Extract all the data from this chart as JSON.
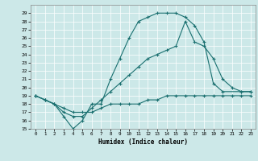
{
  "xlabel": "Humidex (Indice chaleur)",
  "xlim": [
    -0.5,
    23.5
  ],
  "ylim": [
    15,
    30
  ],
  "yticks": [
    15,
    16,
    17,
    18,
    19,
    20,
    21,
    22,
    23,
    24,
    25,
    26,
    27,
    28,
    29
  ],
  "xticks": [
    0,
    1,
    2,
    3,
    4,
    5,
    6,
    7,
    8,
    9,
    10,
    11,
    12,
    13,
    14,
    15,
    16,
    17,
    18,
    19,
    20,
    21,
    22,
    23
  ],
  "bg_color": "#cce8e8",
  "line_color": "#1a7070",
  "line1_x": [
    0,
    1,
    2,
    3,
    4,
    5,
    6,
    7,
    8,
    9,
    10,
    11,
    12,
    13,
    14,
    15,
    16,
    17,
    18,
    19,
    20,
    22,
    23
  ],
  "line1_y": [
    19,
    18.5,
    18,
    16.5,
    15,
    16,
    18,
    18,
    21,
    23.5,
    26,
    28,
    28.5,
    29,
    29,
    29,
    28.5,
    27.5,
    25.5,
    20.5,
    19.5,
    19.5,
    19.5
  ],
  "line2_x": [
    0,
    1,
    2,
    3,
    4,
    5,
    6,
    7,
    8,
    9,
    10,
    11,
    12,
    13,
    14,
    15,
    16,
    17,
    18,
    19,
    20,
    21,
    22,
    23
  ],
  "line2_y": [
    19,
    18.5,
    18,
    17,
    16.5,
    16.5,
    17.5,
    18.5,
    19.5,
    20.5,
    21.5,
    22.5,
    23.5,
    24,
    24.5,
    25,
    28,
    25.5,
    25,
    23.5,
    21,
    20,
    19.5,
    19.5
  ],
  "line3_x": [
    0,
    1,
    2,
    3,
    4,
    5,
    6,
    7,
    8,
    9,
    10,
    11,
    12,
    13,
    14,
    15,
    16,
    17,
    18,
    19,
    20,
    21,
    22,
    23
  ],
  "line3_y": [
    19,
    18.5,
    18,
    17.5,
    17,
    17,
    17,
    17.5,
    18,
    18,
    18,
    18,
    18.5,
    18.5,
    19,
    19,
    19,
    19,
    19,
    19,
    19,
    19,
    19,
    19
  ]
}
